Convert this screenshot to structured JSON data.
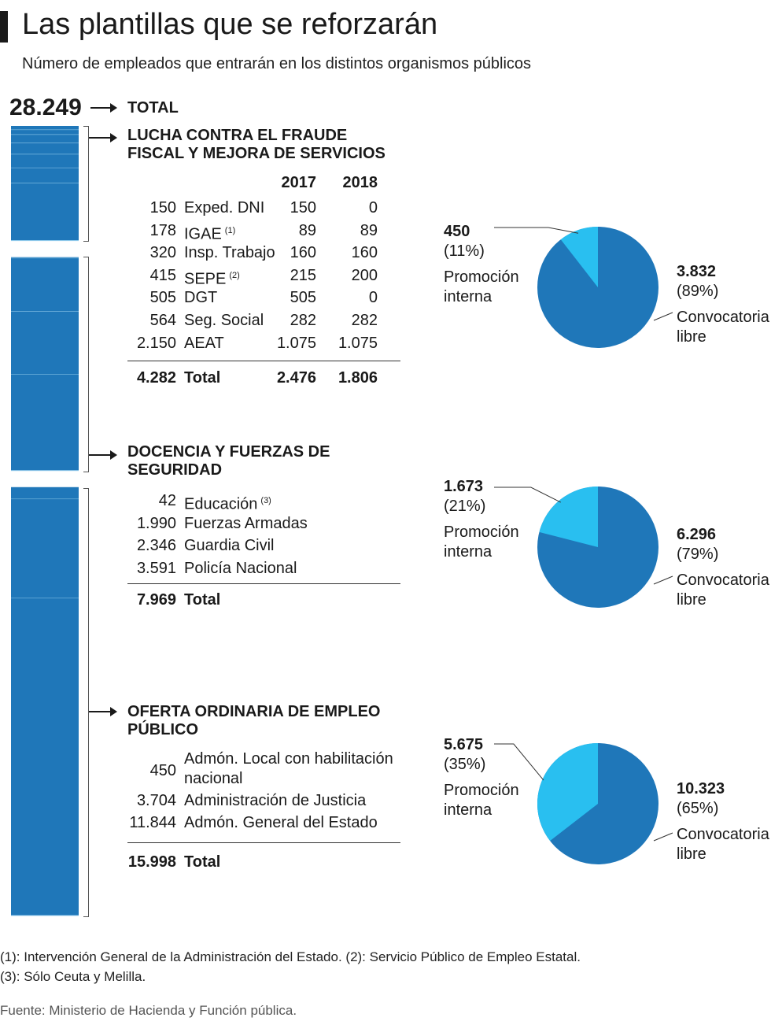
{
  "title": "Las plantillas que se reforzarán",
  "subtitle": "Número de empleados que entrarán en los distintos organismos públicos",
  "grand_total": {
    "value": "28.249",
    "label": "TOTAL"
  },
  "colors": {
    "bar": "#1f77b9",
    "convocatoria": "#1f77b9",
    "promocion": "#29bff0",
    "divider": "#9fd3f1"
  },
  "sections": [
    {
      "title_line1": "LUCHA CONTRA EL FRAUDE",
      "title_line2": "FISCAL Y MEJORA DE SERVICIOS",
      "year_headers": [
        "2017",
        "2018"
      ],
      "rows": [
        {
          "total": "150",
          "name": "Exped. DNI",
          "note": "",
          "y2017": "150",
          "y2018": "0"
        },
        {
          "total": "178",
          "name": "IGAE",
          "note": "(1)",
          "y2017": "89",
          "y2018": "89"
        },
        {
          "total": "320",
          "name": "Insp. Trabajo",
          "note": "",
          "y2017": "160",
          "y2018": "160"
        },
        {
          "total": "415",
          "name": "SEPE",
          "note": "(2)",
          "y2017": "215",
          "y2018": "200"
        },
        {
          "total": "505",
          "name": "DGT",
          "note": "",
          "y2017": "505",
          "y2018": "0"
        },
        {
          "total": "564",
          "name": "Seg. Social",
          "note": "",
          "y2017": "282",
          "y2018": "282"
        },
        {
          "total": "2.150",
          "name": "AEAT",
          "note": "",
          "y2017": "1.075",
          "y2018": "1.075"
        }
      ],
      "total_row": {
        "total": "4.282",
        "name": "Total",
        "y2017": "2.476",
        "y2018": "1.806"
      }
    },
    {
      "title_line1": "DOCENCIA Y FUERZAS DE",
      "title_line2": "SEGURIDAD",
      "rows": [
        {
          "total": "42",
          "name": "Educación",
          "note": "(3)"
        },
        {
          "total": "1.990",
          "name": "Fuerzas Armadas",
          "note": ""
        },
        {
          "total": "2.346",
          "name": "Guardia Civil",
          "note": ""
        },
        {
          "total": "3.591",
          "name": "Policía Nacional",
          "note": ""
        }
      ],
      "total_row": {
        "total": "7.969",
        "name": "Total"
      }
    },
    {
      "title_line1": "OFERTA ORDINARIA DE EMPLEO",
      "title_line2": "PÚBLICO",
      "rows": [
        {
          "total": "450",
          "name_line1": "Admón. Local con habilitación",
          "name_line2": "nacional"
        },
        {
          "total": "3.704",
          "name": "Administración de Justicia"
        },
        {
          "total": "11.844",
          "name": "Admón. General del Estado"
        }
      ],
      "total_row": {
        "total": "15.998",
        "name": "Total"
      }
    }
  ],
  "chart_data": [
    {
      "type": "bar",
      "title": "",
      "orientation": "stacked-vertical",
      "categories": [
        "Exped. DNI",
        "IGAE",
        "Insp. Trabajo",
        "SEPE",
        "DGT",
        "Seg. Social",
        "AEAT",
        "Educación",
        "Fuerzas Armadas",
        "Guardia Civil",
        "Policía Nacional",
        "Admón. Local con habilitación nacional",
        "Administración de Justicia",
        "Admón. General del Estado"
      ],
      "values": [
        150,
        178,
        320,
        415,
        505,
        564,
        2150,
        42,
        1990,
        2346,
        3591,
        450,
        3704,
        11844
      ],
      "total": 28249
    },
    {
      "type": "pie",
      "section": "LUCHA CONTRA EL FRAUDE FISCAL Y MEJORA DE SERVICIOS",
      "slices": [
        {
          "label_line1": "Promoción",
          "label_line2": "interna",
          "value": 450,
          "value_text": "450",
          "pct_text": "(11%)"
        },
        {
          "label_line1": "Convocatoria",
          "label_line2": "libre",
          "value": 3832,
          "value_text": "3.832",
          "pct_text": "(89%)"
        }
      ]
    },
    {
      "type": "pie",
      "section": "DOCENCIA Y FUERZAS DE SEGURIDAD",
      "slices": [
        {
          "label_line1": "Promoción",
          "label_line2": "interna",
          "value": 1673,
          "value_text": "1.673",
          "pct_text": "(21%)"
        },
        {
          "label_line1": "Convocatoria",
          "label_line2": "libre",
          "value": 6296,
          "value_text": "6.296",
          "pct_text": "(79%)"
        }
      ]
    },
    {
      "type": "pie",
      "section": "OFERTA ORDINARIA DE EMPLEO PÚBLICO",
      "slices": [
        {
          "label_line1": "Promoción",
          "label_line2": "interna",
          "value": 5675,
          "value_text": "5.675",
          "pct_text": "(35%)"
        },
        {
          "label_line1": "Convocatoria",
          "label_line2": "libre",
          "value": 10323,
          "value_text": "10.323",
          "pct_text": "(65%)"
        }
      ]
    }
  ],
  "footnotes": [
    "(1): Intervención General de la Administración del Estado. (2): Servicio Público de Empleo Estatal.",
    "(3): Sólo Ceuta y Melilla."
  ],
  "source": "Fuente: Ministerio de Hacienda y Función pública."
}
